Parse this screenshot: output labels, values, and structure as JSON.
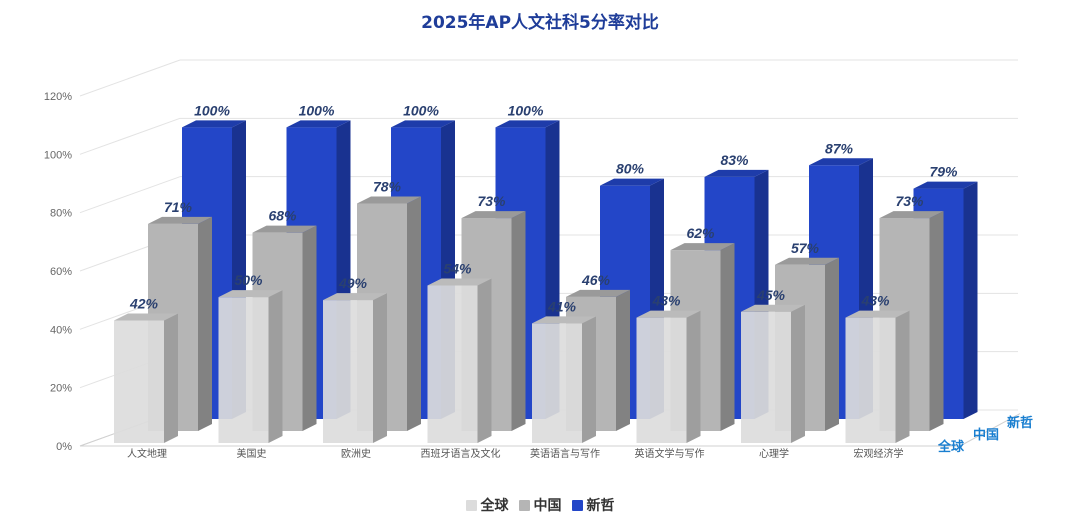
{
  "chart_data": {
    "type": "bar",
    "title": "2025年AP人文社科5分率对比",
    "categories": [
      "人文地理",
      "美国史",
      "欧洲史",
      "西班牙语言及文化",
      "英语语言与写作",
      "英语文学与写作",
      "心理学",
      "宏观经济学"
    ],
    "series": [
      {
        "name": "全球",
        "values": [
          42,
          50,
          49,
          54,
          41,
          43,
          45,
          43
        ]
      },
      {
        "name": "中国",
        "values": [
          71,
          68,
          78,
          73,
          46,
          62,
          57,
          73
        ]
      },
      {
        "name": "新哲",
        "values": [
          100,
          100,
          100,
          100,
          80,
          83,
          87,
          79
        ]
      }
    ],
    "value_suffix": "%",
    "ylim": [
      0,
      120
    ],
    "yticks": [
      "0%",
      "20%",
      "40%",
      "60%",
      "80%",
      "100%",
      "120%"
    ],
    "grid": true,
    "legend": "bottom-center",
    "depth_labels": [
      "全球",
      "中国",
      "新哲"
    ],
    "colors": {
      "全球": "#dcdcdc",
      "中国": "#b5b5b5",
      "新哲": "#2346c8",
      "label_text": "#2a4070",
      "depth_label_text": "#1a7fd0"
    }
  }
}
